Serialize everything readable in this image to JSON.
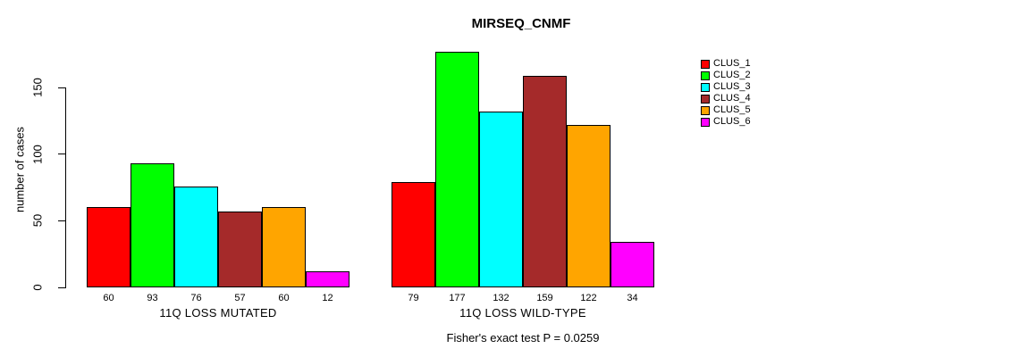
{
  "title": "MIRSEQ_CNMF",
  "footer": "Fisher's exact test P = 0.0259",
  "chart_data": {
    "type": "bar",
    "title": "MIRSEQ_CNMF",
    "xlabel": "",
    "ylabel": "number of cases",
    "ylim": [
      0,
      150
    ],
    "yticks": [
      0,
      50,
      100,
      150
    ],
    "grid": false,
    "legend_position": "right",
    "bar_value_labels_shown": true,
    "categories": [
      "11Q LOSS MUTATED",
      "11Q LOSS WILD-TYPE"
    ],
    "series": [
      {
        "name": "CLUS_1",
        "color": "#FF0000",
        "values": [
          60,
          79
        ]
      },
      {
        "name": "CLUS_2",
        "color": "#00FF00",
        "values": [
          93,
          177
        ]
      },
      {
        "name": "CLUS_3",
        "color": "#00FFFF",
        "values": [
          76,
          132
        ]
      },
      {
        "name": "CLUS_4",
        "color": "#A52A2A",
        "values": [
          57,
          159
        ]
      },
      {
        "name": "CLUS_5",
        "color": "#FFA500",
        "values": [
          60,
          122
        ]
      },
      {
        "name": "CLUS_6",
        "color": "#FF00FF",
        "values": [
          12,
          34
        ]
      }
    ],
    "annotation": "Fisher's exact test P = 0.0259"
  }
}
